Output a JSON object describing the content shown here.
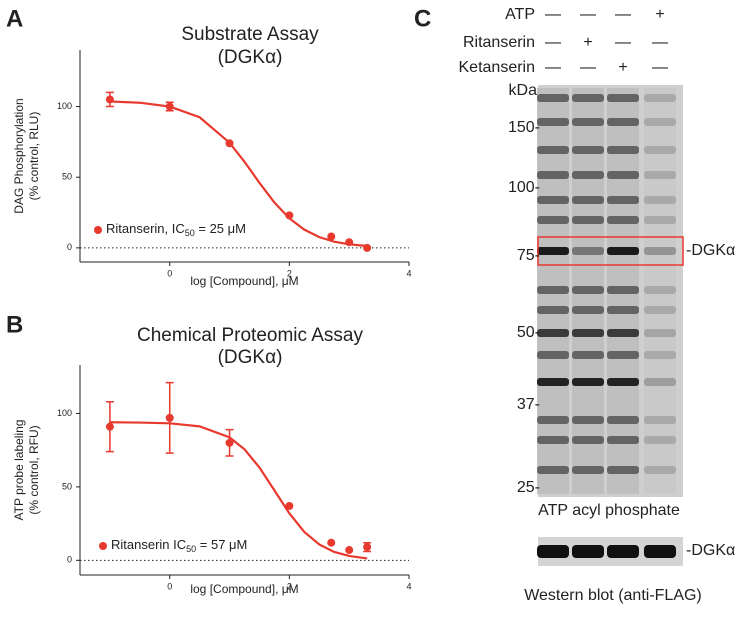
{
  "panels": [
    "A",
    "B",
    "C"
  ],
  "chart_data": [
    {
      "type": "scatter",
      "title": [
        "Substrate Assay",
        "(DGKα)"
      ],
      "xlabel": "log [Compound], μM",
      "ylabel": [
        "DAG Phosphorylation",
        "(% control, RLU)"
      ],
      "xlim": [
        -1.5,
        4
      ],
      "ylim": [
        -10,
        140
      ],
      "xticks": [
        0,
        2,
        4
      ],
      "yticks": [
        0,
        50,
        100
      ],
      "reference_line": 0,
      "series": [
        {
          "name_parts": [
            "Ritanserin, IC",
            "50",
            " = 25 μM"
          ],
          "color": "#e8392e",
          "x": [
            -1,
            0,
            1,
            2,
            2.7,
            3,
            3.3
          ],
          "values": [
            105,
            100,
            74,
            23,
            8,
            4,
            0
          ],
          "errors": [
            5,
            3,
            null,
            null,
            null,
            null,
            null
          ],
          "fit_x": [
            -1,
            -0.5,
            0,
            0.5,
            1,
            1.25,
            1.5,
            1.75,
            2,
            2.25,
            2.5,
            2.75,
            3,
            3.3
          ],
          "fit_values": [
            103.6,
            102.7,
            100,
            92.4,
            74.4,
            60.9,
            46,
            32.1,
            20.9,
            12.9,
            7.6,
            4.4,
            2.5,
            1.3
          ]
        }
      ]
    },
    {
      "type": "scatter",
      "title": [
        "Chemical Proteomic Assay",
        "(DGKα)"
      ],
      "xlabel": "log [Compound], μM",
      "ylabel": [
        "ATP probe labeling",
        "(% control, RFU)"
      ],
      "xlim": [
        -1.5,
        4
      ],
      "ylim": [
        -10,
        133
      ],
      "xticks": [
        0,
        2,
        4
      ],
      "yticks": [
        0,
        50,
        100
      ],
      "reference_line": 0,
      "series": [
        {
          "name_parts": [
            "Ritanserin IC",
            "50",
            " = 57 μM"
          ],
          "color": "#e8392e",
          "x": [
            -1,
            0,
            1,
            2,
            2.7,
            3,
            3.3
          ],
          "values": [
            91,
            97,
            80,
            37,
            12,
            7,
            9
          ],
          "errors": [
            17,
            24,
            9,
            null,
            null,
            null,
            3
          ],
          "fit_x": [
            -1,
            -0.5,
            0,
            0.5,
            1,
            1.25,
            1.5,
            1.75,
            2,
            2.25,
            2.5,
            2.75,
            3,
            3.3
          ],
          "fit_values": [
            94,
            93.8,
            93.3,
            91.2,
            83.7,
            75.6,
            63.2,
            47.6,
            32,
            19.3,
            10.8,
            5.7,
            3,
            1.3
          ]
        }
      ]
    }
  ],
  "blot": {
    "conditions": [
      {
        "name": "ATP",
        "states": [
          "—",
          "—",
          "—",
          "+"
        ]
      },
      {
        "name": "Ritanserin",
        "states": [
          "—",
          "+",
          "—",
          "—"
        ]
      },
      {
        "name": "Ketanserin",
        "states": [
          "—",
          "—",
          "+",
          "—"
        ]
      }
    ],
    "unit": "kDa",
    "markers": [
      "150-",
      "100-",
      "75-",
      "50-",
      "37-",
      "25-"
    ],
    "band_label": "-DGKα",
    "caption": "ATP acyl phosphate",
    "western_label": "-DGKα",
    "western_caption": "Western blot (anti-FLAG)"
  }
}
